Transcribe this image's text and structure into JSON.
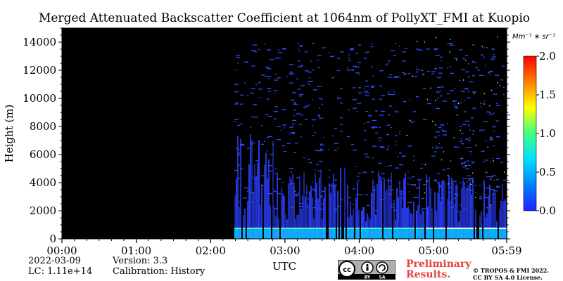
{
  "chart_data": {
    "type": "heatmap",
    "title": "Merged Attenuated Backscatter Coefficient at 1064nm of PollyXT_FMI at Kuopio",
    "xlabel": "UTC",
    "ylabel": "Height (m)",
    "x_tick_labels": [
      "00:00",
      "01:00",
      "02:00",
      "03:00",
      "04:00",
      "05:00",
      "05:59"
    ],
    "x_ticks_hours": [
      0,
      1,
      2,
      3,
      4,
      5,
      5.983
    ],
    "xlim_hours": [
      0,
      5.983
    ],
    "y_ticks": [
      0,
      2000,
      4000,
      6000,
      8000,
      10000,
      12000,
      14000
    ],
    "ylim": [
      0,
      15000
    ],
    "colorbar": {
      "units": "Mm⁻¹ ∗ sr⁻¹",
      "ticks": [
        "0.0",
        "0.5",
        "1.0",
        "1.5",
        "2.0"
      ],
      "range": [
        0.0,
        2.0
      ],
      "colormap": [
        "#2020ff",
        "#0080ff",
        "#00e0ff",
        "#40ff80",
        "#ffff00",
        "#ff8000",
        "#ff0000"
      ]
    },
    "data_start_hours": 2.3,
    "no_data_color": "#000000",
    "near_surface_layer_height_m": 700,
    "grid": false
  },
  "footer": {
    "date": "2022-03-09",
    "lc": "LC: 1.11e+14",
    "version": "Version: 3.3",
    "calibration": "Calibration: History",
    "preliminary_line1": "Preliminary",
    "preliminary_line2": "Results.",
    "copyright_line1": "© TROPOS & FMI 2022.",
    "copyright_line2": "CC BY SA 4.0 License.",
    "license_badge": [
      "cc",
      "BY",
      "SA"
    ]
  }
}
